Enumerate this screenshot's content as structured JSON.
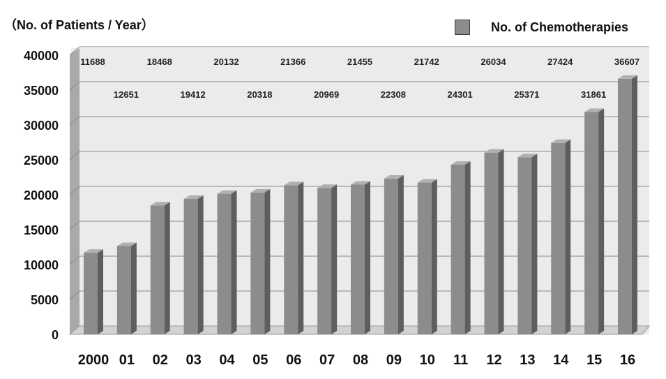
{
  "chart_data": {
    "type": "bar",
    "title": "",
    "ylabel": "（No. of Patients / Year）",
    "xlabel": "",
    "categories": [
      "2000",
      "01",
      "02",
      "03",
      "04",
      "05",
      "06",
      "07",
      "08",
      "09",
      "10",
      "11",
      "12",
      "13",
      "14",
      "15",
      "16"
    ],
    "series": [
      {
        "name": "No. of Chemotherapies",
        "values": [
          11688,
          12651,
          18468,
          19412,
          20132,
          20318,
          21366,
          20969,
          21455,
          22308,
          21742,
          24301,
          26034,
          25371,
          27424,
          31861,
          36607
        ],
        "color": "#8c8c8c"
      }
    ],
    "data_labels": [
      "11688",
      "12651",
      "18468",
      "19412",
      "20132",
      "20318",
      "21366",
      "20969",
      "21455",
      "22308",
      "21742",
      "24301",
      "26034",
      "25371",
      "27424",
      "31861",
      "36607"
    ],
    "yticks": [
      "0",
      "5000",
      "10000",
      "15000",
      "20000",
      "25000",
      "30000",
      "35000",
      "40000"
    ],
    "ylim": [
      0,
      40000
    ],
    "grid": true,
    "legend": "top-right",
    "colors": {
      "bar": "#8c8c8c",
      "bar_side": "#5e5e5e",
      "bar_top": "#b0b0b0",
      "plot_bg": "#ebebeb",
      "grid": "#8a8a8a"
    }
  }
}
